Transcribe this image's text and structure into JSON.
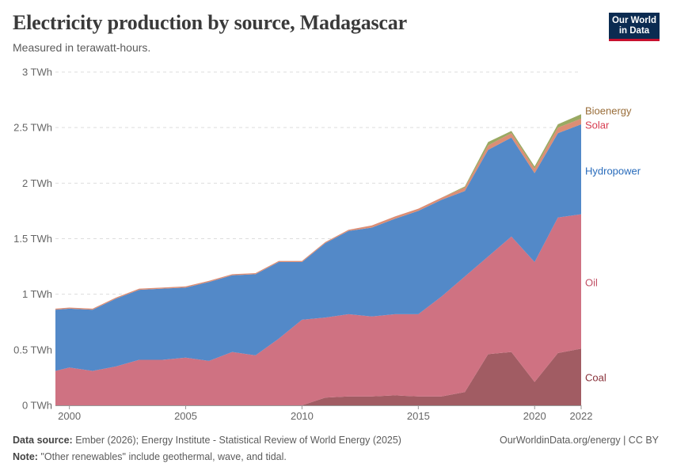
{
  "header": {
    "title": "Electricity production by source, Madagascar",
    "subtitle": "Measured in terawatt-hours.",
    "logo_line1": "Our World",
    "logo_line2": "in Data"
  },
  "footer": {
    "source_label": "Data source:",
    "source_text": "Ember (2026); Energy Institute - Statistical Review of World Energy (2025)",
    "note_label": "Note:",
    "note_text": "\"Other renewables\" include geothermal, wave, and tidal.",
    "credit": "OurWorldinData.org/energy | CC BY"
  },
  "chart_data": {
    "type": "area",
    "stacked": true,
    "title": "Electricity production by source, Madagascar",
    "subtitle": "Measured in terawatt-hours.",
    "ylim": [
      0,
      3
    ],
    "xlim": [
      1999.4,
      2022
    ],
    "y_ticks": [
      {
        "value": 0,
        "label": "0 TWh"
      },
      {
        "value": 0.5,
        "label": "0.5 TWh"
      },
      {
        "value": 1,
        "label": "1 TWh"
      },
      {
        "value": 1.5,
        "label": "1.5 TWh"
      },
      {
        "value": 2,
        "label": "2 TWh"
      },
      {
        "value": 2.5,
        "label": "2.5 TWh"
      },
      {
        "value": 3,
        "label": "3 TWh"
      }
    ],
    "x_ticks": [
      {
        "value": 2000,
        "label": "2000"
      },
      {
        "value": 2005,
        "label": "2005"
      },
      {
        "value": 2010,
        "label": "2010"
      },
      {
        "value": 2015,
        "label": "2015"
      },
      {
        "value": 2020,
        "label": "2020"
      },
      {
        "value": 2022,
        "label": "2022"
      }
    ],
    "grid": true,
    "legend": "inline-right",
    "x": [
      1999.4,
      2000,
      2001,
      2002,
      2003,
      2004,
      2005,
      2006,
      2007,
      2008,
      2009,
      2010,
      2011,
      2012,
      2013,
      2014,
      2015,
      2016,
      2017,
      2018,
      2019,
      2020,
      2021,
      2022
    ],
    "series": [
      {
        "name": "Coal",
        "color": "#a15c63",
        "label_color": "#883039",
        "values": [
          0,
          0,
          0,
          0,
          0,
          0,
          0,
          0,
          0,
          0,
          0,
          0,
          0.07,
          0.08,
          0.08,
          0.09,
          0.08,
          0.08,
          0.12,
          0.46,
          0.48,
          0.21,
          0.47,
          0.51
        ]
      },
      {
        "name": "Oil",
        "color": "#cf7282",
        "label_color": "#c15065",
        "values": [
          0.31,
          0.34,
          0.31,
          0.35,
          0.41,
          0.41,
          0.43,
          0.4,
          0.48,
          0.45,
          0.6,
          0.77,
          0.72,
          0.74,
          0.72,
          0.73,
          0.74,
          0.9,
          1.04,
          0.88,
          1.04,
          1.08,
          1.22,
          1.21
        ]
      },
      {
        "name": "Hydropower",
        "color": "#5389c8",
        "label_color": "#286bbb",
        "values": [
          0.55,
          0.53,
          0.55,
          0.61,
          0.63,
          0.64,
          0.63,
          0.71,
          0.69,
          0.73,
          0.69,
          0.52,
          0.67,
          0.75,
          0.8,
          0.86,
          0.93,
          0.87,
          0.77,
          0.96,
          0.89,
          0.8,
          0.76,
          0.81
        ]
      },
      {
        "name": "Solar",
        "color": "#dc8e75",
        "label_color": "#d73c50",
        "values": [
          0.01,
          0.01,
          0.01,
          0.01,
          0.01,
          0.01,
          0.01,
          0.01,
          0.01,
          0.01,
          0.01,
          0.01,
          0.01,
          0.01,
          0.02,
          0.02,
          0.02,
          0.02,
          0.03,
          0.04,
          0.04,
          0.04,
          0.05,
          0.05
        ]
      },
      {
        "name": "Bioenergy",
        "color": "#9aa962",
        "label_color": "#996d39",
        "values": [
          0,
          0,
          0,
          0,
          0,
          0,
          0,
          0,
          0,
          0,
          0,
          0,
          0,
          0,
          0,
          0,
          0,
          0,
          0.01,
          0.03,
          0.02,
          0.02,
          0.03,
          0.04
        ]
      }
    ]
  }
}
